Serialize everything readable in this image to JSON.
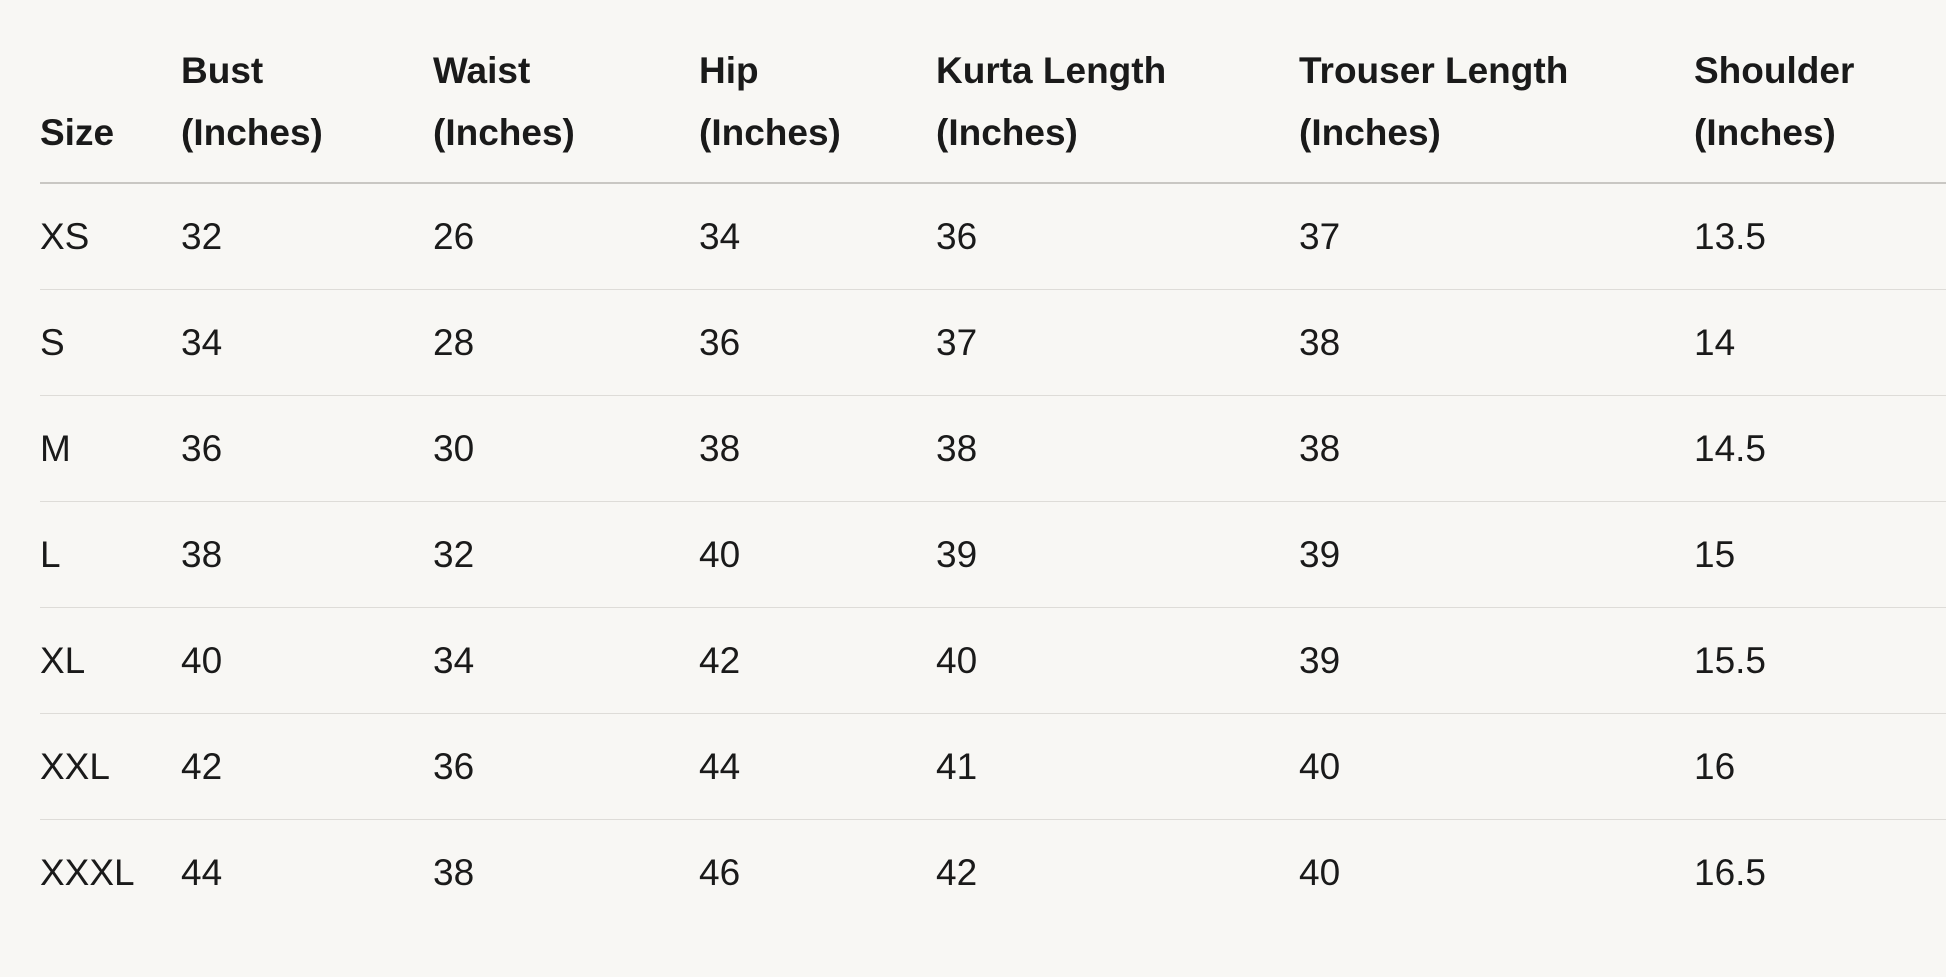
{
  "table": {
    "headers": [
      {
        "line1": "",
        "line2": "Size"
      },
      {
        "line1": "Bust",
        "line2": "(Inches)"
      },
      {
        "line1": "Waist",
        "line2": "(Inches)"
      },
      {
        "line1": "Hip",
        "line2": "(Inches)"
      },
      {
        "line1": "Kurta Length",
        "line2": "(Inches)"
      },
      {
        "line1": "Trouser Length",
        "line2": "(Inches)"
      },
      {
        "line1": "Shoulder",
        "line2": "(Inches)"
      }
    ],
    "rows": [
      [
        "XS",
        "32",
        "26",
        "34",
        "36",
        "37",
        "13.5"
      ],
      [
        "S",
        "34",
        "28",
        "36",
        "37",
        "38",
        "14"
      ],
      [
        "M",
        "36",
        "30",
        "38",
        "38",
        "38",
        "14.5"
      ],
      [
        "L",
        "38",
        "32",
        "40",
        "39",
        "39",
        "15"
      ],
      [
        "XL",
        "40",
        "34",
        "42",
        "40",
        "39",
        "15.5"
      ],
      [
        "XXL",
        "42",
        "36",
        "44",
        "41",
        "40",
        "16"
      ],
      [
        "XXXL",
        "44",
        "38",
        "46",
        "42",
        "40",
        "16.5"
      ]
    ]
  }
}
